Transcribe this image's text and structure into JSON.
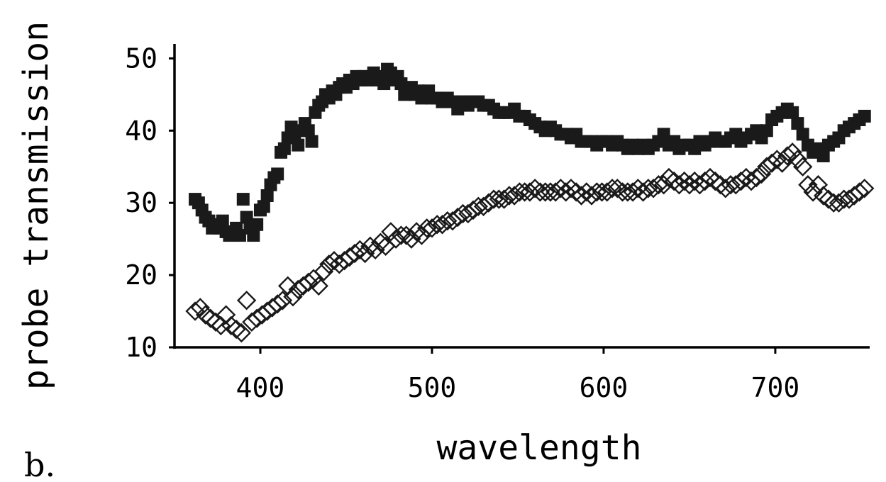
{
  "panel_label": "b.",
  "chart_data": {
    "type": "scatter",
    "xlabel": "wavelength",
    "ylabel": "probe transmission",
    "xlim": [
      350,
      755
    ],
    "ylim": [
      10,
      52
    ],
    "xticks": [
      400,
      500,
      600,
      700
    ],
    "yticks": [
      10,
      20,
      30,
      40,
      50
    ],
    "grid": false,
    "series": [
      {
        "marker": "filled-square",
        "color": "#1a1a1a",
        "x": [
          362,
          364,
          366,
          368,
          370,
          372,
          374,
          376,
          378,
          380,
          382,
          384,
          386,
          388,
          390,
          392,
          394,
          396,
          398,
          400,
          402,
          404,
          406,
          408,
          410,
          412,
          414,
          416,
          418,
          420,
          422,
          424,
          426,
          428,
          430,
          432,
          434,
          436,
          438,
          440,
          442,
          444,
          446,
          448,
          450,
          452,
          454,
          456,
          458,
          460,
          462,
          464,
          466,
          468,
          470,
          472,
          474,
          476,
          478,
          480,
          482,
          484,
          486,
          488,
          490,
          492,
          494,
          496,
          498,
          500,
          503,
          506,
          509,
          512,
          515,
          518,
          521,
          524,
          527,
          530,
          533,
          536,
          539,
          542,
          545,
          548,
          551,
          554,
          557,
          560,
          563,
          566,
          569,
          572,
          575,
          578,
          581,
          584,
          587,
          590,
          593,
          596,
          599,
          602,
          605,
          608,
          611,
          614,
          617,
          620,
          623,
          626,
          629,
          632,
          635,
          638,
          641,
          644,
          647,
          650,
          653,
          656,
          659,
          662,
          665,
          668,
          671,
          674,
          677,
          680,
          683,
          686,
          689,
          692,
          695,
          698,
          701,
          704,
          707,
          710,
          713,
          716,
          719,
          722,
          725,
          728,
          731,
          734,
          737,
          740,
          743,
          746,
          749,
          752
        ],
        "y": [
          30.5,
          30.0,
          29.0,
          28.0,
          27.5,
          26.5,
          27.0,
          26.5,
          27.5,
          26.0,
          25.5,
          26.0,
          26.5,
          25.5,
          30.5,
          28.0,
          26.5,
          25.5,
          27.0,
          29.0,
          29.5,
          31.0,
          32.5,
          33.5,
          34.0,
          37.0,
          37.5,
          39.0,
          40.5,
          39.5,
          38.0,
          40.0,
          41.0,
          40.0,
          38.5,
          42.5,
          43.5,
          44.0,
          45.0,
          44.5,
          45.5,
          45.0,
          46.0,
          46.5,
          46.0,
          47.0,
          46.5,
          47.5,
          47.0,
          47.5,
          47.0,
          47.5,
          48.0,
          47.0,
          47.5,
          46.5,
          48.5,
          48.0,
          47.0,
          47.5,
          46.5,
          45.0,
          45.5,
          46.0,
          45.0,
          45.5,
          44.5,
          45.0,
          45.5,
          44.5,
          44.5,
          44.0,
          44.5,
          44.0,
          43.0,
          44.0,
          43.5,
          44.0,
          44.0,
          43.5,
          43.5,
          43.0,
          42.5,
          42.5,
          42.5,
          43.0,
          42.0,
          42.0,
          41.5,
          41.0,
          40.5,
          40.0,
          40.5,
          40.0,
          39.5,
          39.5,
          39.0,
          39.5,
          38.5,
          38.5,
          38.5,
          38.0,
          38.5,
          38.5,
          38.0,
          38.5,
          38.0,
          37.5,
          38.0,
          37.5,
          38.0,
          37.5,
          38.0,
          38.5,
          39.5,
          38.0,
          38.5,
          37.5,
          38.0,
          38.0,
          37.5,
          38.5,
          38.0,
          38.5,
          39.0,
          38.5,
          38.5,
          39.0,
          39.5,
          38.5,
          39.0,
          39.5,
          40.0,
          39.0,
          40.0,
          41.5,
          42.0,
          42.5,
          43.0,
          42.5,
          41.0,
          39.5,
          38.0,
          37.0,
          37.5,
          36.5,
          38.0,
          38.5,
          39.0,
          40.0,
          40.5,
          41.0,
          41.5,
          42.0
        ]
      },
      {
        "marker": "open-diamond",
        "color": "#1a1a1a",
        "x": [
          362,
          365,
          368,
          371,
          374,
          377,
          380,
          383,
          386,
          389,
          392,
          395,
          398,
          401,
          404,
          407,
          410,
          413,
          416,
          419,
          422,
          425,
          428,
          431,
          434,
          437,
          440,
          443,
          446,
          449,
          452,
          455,
          458,
          461,
          464,
          467,
          470,
          473,
          476,
          479,
          482,
          485,
          488,
          491,
          494,
          497,
          500,
          503,
          506,
          509,
          512,
          515,
          518,
          521,
          524,
          527,
          530,
          533,
          536,
          539,
          542,
          545,
          548,
          551,
          554,
          557,
          560,
          563,
          566,
          569,
          572,
          575,
          578,
          581,
          584,
          587,
          590,
          593,
          596,
          599,
          602,
          605,
          608,
          611,
          614,
          617,
          620,
          623,
          626,
          629,
          632,
          635,
          638,
          641,
          644,
          647,
          650,
          653,
          656,
          659,
          662,
          665,
          668,
          671,
          674,
          677,
          680,
          683,
          686,
          689,
          692,
          695,
          698,
          701,
          704,
          707,
          710,
          713,
          716,
          719,
          722,
          725,
          728,
          731,
          734,
          737,
          740,
          743,
          746,
          749,
          752
        ],
        "y": [
          15.0,
          15.5,
          14.5,
          14.0,
          13.5,
          13.0,
          14.5,
          13.0,
          12.5,
          12.0,
          16.5,
          13.5,
          14.0,
          14.5,
          15.0,
          15.5,
          16.0,
          16.5,
          18.5,
          17.0,
          18.0,
          18.5,
          19.0,
          19.5,
          18.5,
          20.5,
          21.5,
          22.0,
          21.5,
          22.0,
          22.5,
          23.0,
          23.5,
          23.0,
          24.0,
          23.5,
          24.5,
          24.0,
          26.0,
          25.0,
          25.5,
          25.5,
          25.0,
          26.0,
          25.5,
          26.5,
          26.5,
          27.0,
          27.0,
          27.5,
          27.5,
          28.0,
          28.5,
          28.5,
          29.0,
          29.5,
          29.5,
          30.0,
          30.5,
          30.5,
          30.5,
          31.0,
          31.0,
          31.5,
          31.5,
          31.5,
          32.0,
          31.5,
          31.5,
          31.5,
          31.5,
          32.0,
          31.5,
          32.0,
          31.5,
          31.0,
          31.5,
          31.0,
          31.5,
          31.5,
          31.5,
          32.0,
          32.0,
          31.5,
          31.5,
          31.5,
          32.0,
          31.5,
          32.0,
          32.0,
          32.5,
          32.5,
          33.5,
          33.0,
          32.5,
          33.0,
          32.5,
          33.0,
          32.5,
          33.0,
          33.5,
          33.0,
          32.5,
          32.0,
          32.5,
          32.5,
          33.0,
          33.5,
          33.0,
          33.5,
          34.0,
          35.0,
          35.5,
          36.0,
          35.5,
          36.5,
          37.0,
          36.0,
          35.0,
          32.5,
          31.5,
          32.5,
          31.0,
          30.5,
          30.0,
          30.0,
          30.5,
          30.5,
          31.0,
          31.5,
          32.0
        ]
      }
    ]
  }
}
